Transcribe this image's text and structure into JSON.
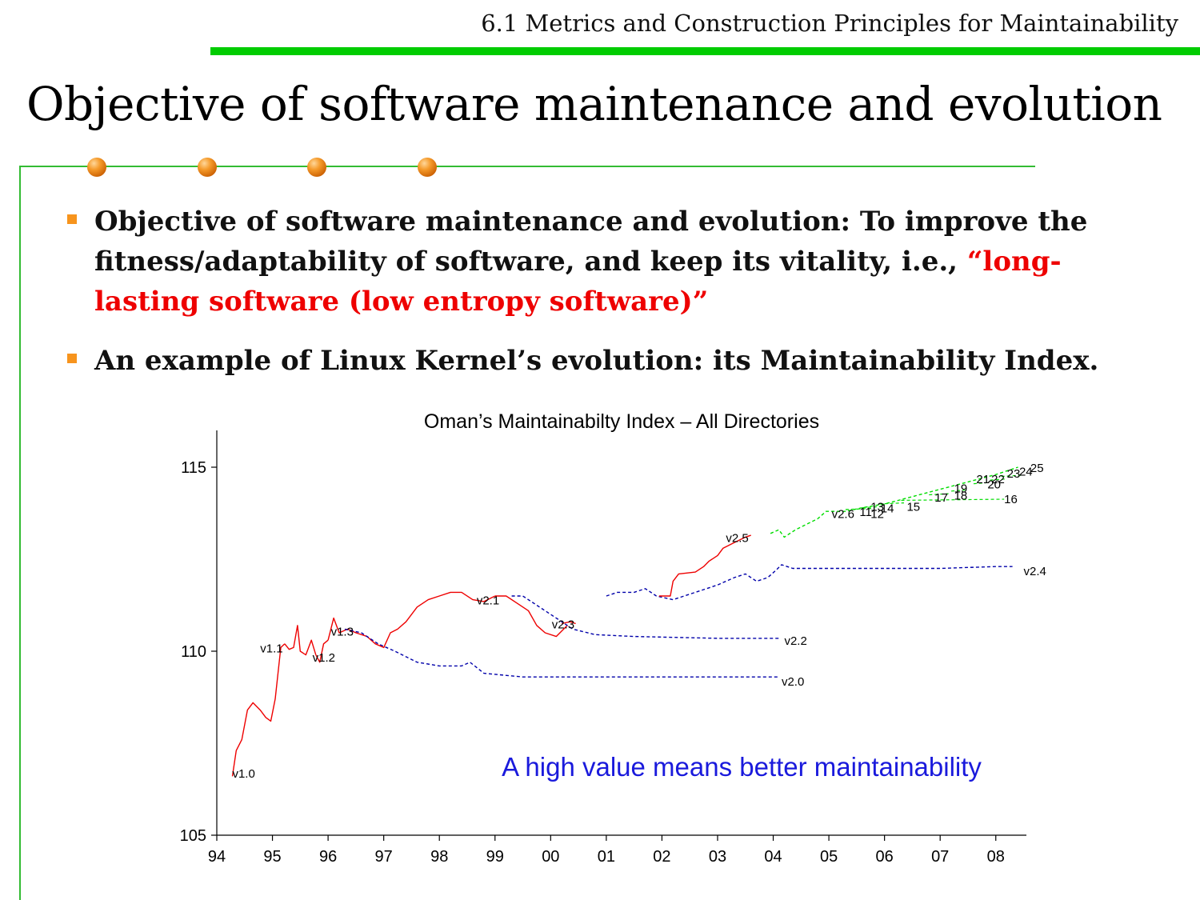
{
  "header": {
    "title": "6.1 Metrics and Construction Principles for Maintainability"
  },
  "slide": {
    "title": "Objective of software maintenance and evolution"
  },
  "bullets": [
    {
      "text": "Objective of software maintenance and evolution: To improve the fitness/adaptability of software, and keep its vitality, i.e., ",
      "highlight": "“long-lasting software (low entropy software)”"
    },
    {
      "text": "An example of Linux Kernel’s evolution: its Maintainability Index."
    }
  ],
  "colors": {
    "accent_green": "#00cc00",
    "bullet_orange": "#f7941d",
    "highlight_red": "#ee0000",
    "series_red": "#ee0000",
    "series_blue": "#0000aa",
    "series_green": "#00dd00"
  },
  "chart_data": {
    "type": "line",
    "title": "Oman’s Maintainabilty Index – All Directories",
    "annotation": "A high value means better maintainability",
    "xlabel": "",
    "ylabel": "",
    "xlim": [
      1994.0,
      2008.55
    ],
    "ylim": [
      105,
      116
    ],
    "x_tick_values": [
      1994,
      1995,
      1996,
      1997,
      1998,
      1999,
      2000,
      2001,
      2002,
      2003,
      2004,
      2005,
      2006,
      2007,
      2008
    ],
    "x_tick_labels": [
      "94",
      "95",
      "96",
      "97",
      "98",
      "99",
      "00",
      "01",
      "02",
      "03",
      "04",
      "05",
      "06",
      "07",
      "08"
    ],
    "y_ticks": [
      105,
      110,
      115
    ],
    "grid": false,
    "series": [
      {
        "label": "v1.0",
        "color": "#ee0000",
        "style": "solid",
        "label_at": [
          1994.28,
          106.7
        ],
        "points": [
          [
            1994.28,
            106.6
          ],
          [
            1994.35,
            107.3
          ],
          [
            1994.45,
            107.6
          ],
          [
            1994.55,
            108.4
          ],
          [
            1994.65,
            108.6
          ],
          [
            1994.78,
            108.4
          ],
          [
            1994.88,
            108.2
          ],
          [
            1994.97,
            108.1
          ],
          [
            1995.05,
            108.7
          ],
          [
            1995.1,
            109.4
          ],
          [
            1995.15,
            110.1
          ],
          [
            1995.22,
            110.2
          ]
        ]
      },
      {
        "label": "v1.1",
        "color": "#ee0000",
        "style": "solid",
        "label_at": [
          1994.78,
          110.1
        ],
        "points": [
          [
            1995.22,
            110.2
          ],
          [
            1995.3,
            110.05
          ],
          [
            1995.38,
            110.1
          ],
          [
            1995.45,
            110.7
          ],
          [
            1995.5,
            110.0
          ],
          [
            1995.6,
            109.9
          ],
          [
            1995.7,
            110.3
          ],
          [
            1995.78,
            109.9
          ]
        ]
      },
      {
        "label": "v1.2",
        "color": "#ee0000",
        "style": "solid",
        "label_at": [
          1995.72,
          109.85
        ],
        "points": [
          [
            1995.78,
            109.9
          ],
          [
            1995.85,
            109.7
          ],
          [
            1995.92,
            110.2
          ],
          [
            1996.0,
            110.3
          ]
        ]
      },
      {
        "label": "v1.3",
        "color": "#ee0000",
        "style": "solid",
        "label_at": [
          1996.05,
          110.55
        ],
        "points": [
          [
            1996.0,
            110.3
          ],
          [
            1996.1,
            110.9
          ],
          [
            1996.2,
            110.5
          ],
          [
            1996.35,
            110.6
          ],
          [
            1996.5,
            110.5
          ],
          [
            1996.7,
            110.4
          ],
          [
            1996.85,
            110.2
          ],
          [
            1997.0,
            110.1
          ],
          [
            1997.12,
            110.5
          ],
          [
            1997.25,
            110.6
          ],
          [
            1997.4,
            110.8
          ],
          [
            1997.6,
            111.2
          ],
          [
            1997.8,
            111.4
          ],
          [
            1998.0,
            111.5
          ],
          [
            1998.2,
            111.6
          ],
          [
            1998.4,
            111.6
          ],
          [
            1998.6,
            111.4
          ],
          [
            1998.8,
            111.35
          ],
          [
            1999.0,
            111.5
          ]
        ]
      },
      {
        "label": "v2.0",
        "color": "#0000aa",
        "style": "dashed",
        "label_at": [
          2004.15,
          109.2
        ],
        "points": [
          [
            1996.3,
            110.6
          ],
          [
            1996.6,
            110.5
          ],
          [
            1996.9,
            110.2
          ],
          [
            1997.2,
            110.0
          ],
          [
            1997.6,
            109.7
          ],
          [
            1998.0,
            109.6
          ],
          [
            1998.4,
            109.6
          ],
          [
            1998.55,
            109.7
          ],
          [
            1998.8,
            109.4
          ],
          [
            1999.5,
            109.3
          ],
          [
            2000.5,
            109.3
          ],
          [
            2002.0,
            109.3
          ],
          [
            2004.1,
            109.3
          ]
        ]
      },
      {
        "label": "v2.1",
        "color": "#ee0000",
        "style": "solid",
        "label_at": [
          1998.67,
          111.4
        ],
        "points": [
          [
            1999.0,
            111.5
          ],
          [
            1999.2,
            111.5
          ],
          [
            1999.4,
            111.3
          ],
          [
            1999.6,
            111.1
          ],
          [
            1999.75,
            110.7
          ],
          [
            1999.9,
            110.5
          ],
          [
            2000.1,
            110.4
          ],
          [
            2000.3,
            110.7
          ]
        ]
      },
      {
        "label": "v2.2",
        "color": "#0000aa",
        "style": "dashed",
        "label_at": [
          2004.2,
          110.3
        ],
        "points": [
          [
            1999.3,
            111.5
          ],
          [
            1999.5,
            111.5
          ],
          [
            1999.8,
            111.2
          ],
          [
            2000.1,
            110.9
          ],
          [
            2000.4,
            110.6
          ],
          [
            2000.8,
            110.45
          ],
          [
            2001.5,
            110.4
          ],
          [
            2003.0,
            110.35
          ],
          [
            2004.1,
            110.35
          ]
        ]
      },
      {
        "label": "v2.3",
        "color": "#ee0000",
        "style": "solid",
        "label_at": [
          2000.02,
          110.75
        ],
        "points": [
          [
            2000.2,
            110.75
          ],
          [
            2000.35,
            110.8
          ],
          [
            2000.45,
            110.75
          ]
        ]
      },
      {
        "label": "v2.4",
        "color": "#0000aa",
        "style": "dashed",
        "label_at": [
          2008.5,
          112.2
        ],
        "points": [
          [
            2001.0,
            111.5
          ],
          [
            2001.2,
            111.6
          ],
          [
            2001.5,
            111.6
          ],
          [
            2001.7,
            111.7
          ],
          [
            2001.9,
            111.5
          ],
          [
            2002.2,
            111.4
          ],
          [
            2002.6,
            111.6
          ],
          [
            2003.0,
            111.8
          ],
          [
            2003.3,
            112.0
          ],
          [
            2003.5,
            112.1
          ],
          [
            2003.7,
            111.9
          ],
          [
            2003.9,
            112.0
          ],
          [
            2004.05,
            112.2
          ],
          [
            2004.15,
            112.35
          ],
          [
            2004.35,
            112.25
          ],
          [
            2005.0,
            112.25
          ],
          [
            2006.0,
            112.25
          ],
          [
            2007.0,
            112.25
          ],
          [
            2008.0,
            112.3
          ],
          [
            2008.3,
            112.3
          ]
        ]
      },
      {
        "label": "v2.5",
        "color": "#ee0000",
        "style": "solid",
        "label_at": [
          2003.15,
          113.1
        ],
        "points": [
          [
            2001.95,
            111.5
          ],
          [
            2002.15,
            111.5
          ],
          [
            2002.2,
            111.9
          ],
          [
            2002.3,
            112.1
          ],
          [
            2002.6,
            112.15
          ],
          [
            2002.75,
            112.3
          ],
          [
            2002.85,
            112.45
          ],
          [
            2003.0,
            112.6
          ],
          [
            2003.1,
            112.8
          ],
          [
            2003.3,
            112.95
          ],
          [
            2003.5,
            113.1
          ],
          [
            2003.6,
            113.15
          ]
        ]
      },
      {
        "label": "v2.6",
        "color": "#00dd00",
        "style": "dashed",
        "label_at": [
          2005.05,
          113.75
        ],
        "points": [
          [
            2003.95,
            113.2
          ],
          [
            2004.1,
            113.3
          ],
          [
            2004.2,
            113.1
          ],
          [
            2004.4,
            113.3
          ],
          [
            2004.6,
            113.45
          ],
          [
            2004.8,
            113.6
          ],
          [
            2004.95,
            113.8
          ],
          [
            2005.3,
            113.8
          ],
          [
            2005.6,
            113.9
          ],
          [
            2006.0,
            114.0
          ],
          [
            2006.5,
            114.2
          ],
          [
            2007.0,
            114.4
          ],
          [
            2007.5,
            114.6
          ],
          [
            2008.0,
            114.8
          ],
          [
            2008.4,
            115.0
          ]
        ]
      }
    ],
    "version_labels": [
      {
        "text": "11",
        "at": [
          2005.55,
          113.8
        ]
      },
      {
        "text": "12",
        "at": [
          2005.75,
          113.75
        ]
      },
      {
        "text": "13",
        "at": [
          2005.75,
          113.95
        ]
      },
      {
        "text": "14",
        "at": [
          2005.93,
          113.9
        ]
      },
      {
        "text": "15",
        "at": [
          2006.4,
          113.95
        ]
      },
      {
        "text": "16",
        "at": [
          2008.15,
          114.15
        ]
      },
      {
        "text": "17",
        "at": [
          2006.9,
          114.2
        ]
      },
      {
        "text": "18",
        "at": [
          2007.25,
          114.25
        ]
      },
      {
        "text": "19",
        "at": [
          2007.25,
          114.45
        ]
      },
      {
        "text": "20",
        "at": [
          2007.85,
          114.55
        ]
      },
      {
        "text": "21",
        "at": [
          2007.65,
          114.7
        ]
      },
      {
        "text": "22",
        "at": [
          2007.92,
          114.7
        ]
      },
      {
        "text": "23",
        "at": [
          2008.2,
          114.85
        ]
      },
      {
        "text": "24",
        "at": [
          2008.42,
          114.9
        ]
      },
      {
        "text": "25",
        "at": [
          2008.62,
          115.0
        ]
      }
    ]
  }
}
